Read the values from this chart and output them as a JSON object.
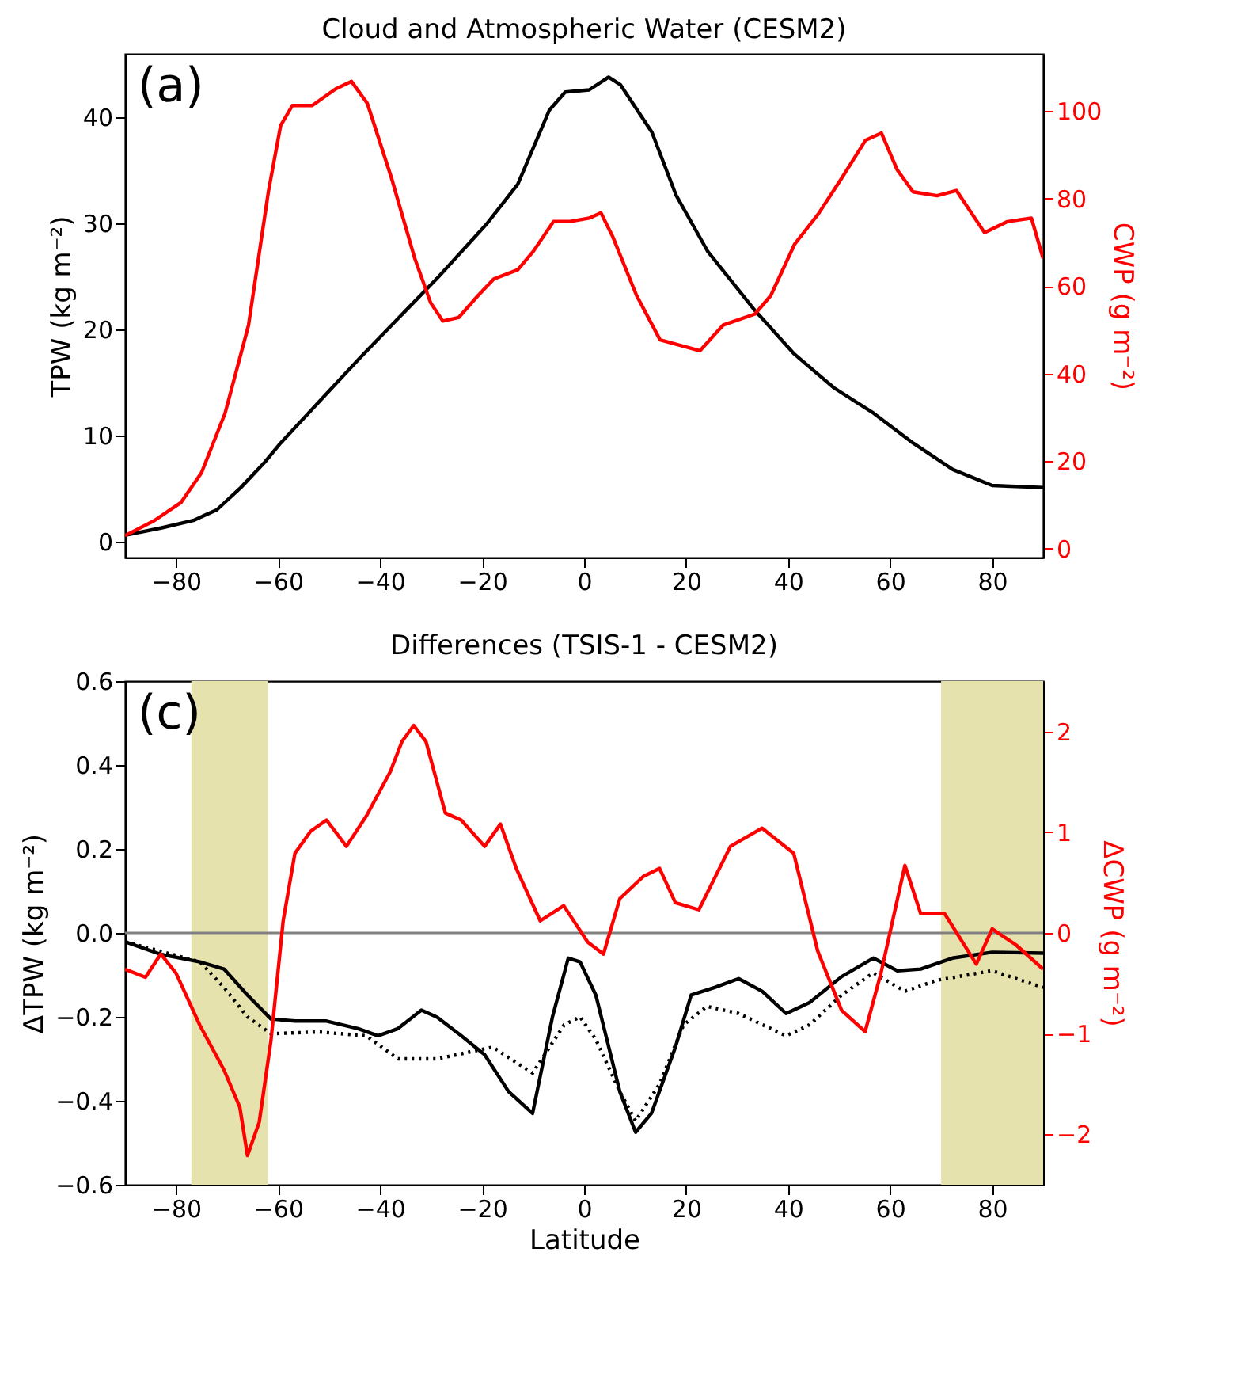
{
  "chart_data": [
    {
      "type": "line",
      "title": "Cloud and Atmospheric Water (CESM2)",
      "ylabel": "TPW (kg m⁻²)",
      "y2label": "CWP (g m⁻²)",
      "annotations": [
        "(a)"
      ],
      "xlim": [
        -90,
        90
      ],
      "xticks": [
        {
          "value": -80,
          "label": "−80"
        },
        {
          "value": -60,
          "label": "−60"
        },
        {
          "value": -40,
          "label": "−40"
        },
        {
          "value": -20,
          "label": "−20"
        },
        0,
        20,
        40,
        60,
        80
      ],
      "ylim": [
        -1.5,
        46
      ],
      "yticks": [
        0,
        10,
        20,
        30,
        40
      ],
      "y2lim": [
        -2,
        113
      ],
      "y2ticks": [
        0,
        20,
        40,
        60,
        80,
        100
      ],
      "grid": false,
      "series": [
        {
          "color": "#000000",
          "x": [
            -90,
            -82.8,
            -76.6,
            -72,
            -67.3,
            -62.6,
            -59.5,
            -44,
            -28.5,
            -19.2,
            -13,
            -6.8,
            -3.7,
            1,
            4.8,
            7.1,
            13.3,
            18,
            24.2,
            33.5,
            41.2,
            49,
            56.8,
            64.5,
            72.3,
            80,
            84.7,
            90
          ],
          "values": [
            0.6,
            1.3,
            2.0,
            3.0,
            5.1,
            7.5,
            9.3,
            17.3,
            25.0,
            29.9,
            33.7,
            40.7,
            42.4,
            42.6,
            43.8,
            43.1,
            38.6,
            32.7,
            27.4,
            21.8,
            17.7,
            14.5,
            12.1,
            9.3,
            6.8,
            5.3,
            5.2,
            5.1
          ]
        },
        {
          "color": "#ff0000",
          "axis": "y2",
          "x": [
            -90,
            -84.3,
            -79,
            -75,
            -70.4,
            -65.8,
            -61.9,
            -59.5,
            -57.2,
            -53.3,
            -48.7,
            -45.6,
            -42.5,
            -37.8,
            -33.2,
            -30.1,
            -27.7,
            -24.6,
            -20.8,
            -17.7,
            -13,
            -9.9,
            -6,
            -2.9,
            1,
            3.3,
            5.6,
            10.3,
            14.9,
            22.7,
            27.3,
            33.5,
            36.6,
            41.3,
            45.9,
            50.6,
            55.2,
            58.3,
            61.4,
            64.5,
            69.2,
            73,
            78.5,
            83,
            87.7,
            90
          ],
          "values": [
            3.0,
            6.4,
            10.6,
            17.4,
            30.9,
            51,
            81.5,
            96.6,
            101.2,
            101.2,
            105,
            106.7,
            101.7,
            84.8,
            66.3,
            56.2,
            52,
            52.8,
            57.8,
            61.6,
            63.7,
            68,
            74.7,
            74.7,
            75.5,
            76.7,
            71.3,
            57.8,
            47.7,
            45.2,
            51.1,
            53.6,
            57.8,
            69.6,
            76.4,
            84.8,
            93.3,
            94.9,
            86.5,
            81.5,
            80.6,
            81.8,
            72.2,
            74.7,
            75.5,
            66.3
          ]
        }
      ]
    },
    {
      "type": "line",
      "title": "Differences (TSIS-1 - CESM2)",
      "xlabel": "Latitude",
      "ylabel": "ΔTPW (kg m⁻²)",
      "y2label": "ΔCWP (g m⁻²)",
      "annotations": [
        "(c)"
      ],
      "xlim": [
        -90,
        90
      ],
      "xticks": [
        {
          "value": -80,
          "label": "−80"
        },
        {
          "value": -60,
          "label": "−60"
        },
        {
          "value": -40,
          "label": "−40"
        },
        {
          "value": -20,
          "label": "−20"
        },
        0,
        20,
        40,
        60,
        80
      ],
      "ylim": [
        -0.6,
        0.6
      ],
      "yticks": [
        {
          "value": -0.6,
          "label": "−0.6"
        },
        {
          "value": -0.4,
          "label": "−0.4"
        },
        {
          "value": -0.2,
          "label": "−0.2"
        },
        {
          "value": 0,
          "label": "0.0"
        },
        0.2,
        0.4,
        0.6
      ],
      "y2lim": [
        -2.5,
        2.5
      ],
      "y2ticks": [
        {
          "value": -2,
          "label": "−2"
        },
        {
          "value": -1,
          "label": "−1"
        },
        0,
        1,
        2
      ],
      "grid": false,
      "ref_lines": [
        {
          "axis": "y",
          "value": 0,
          "color": "#808080"
        }
      ],
      "bands": [
        {
          "axis": "x",
          "from": -77,
          "to": -62,
          "color": "#e6e2ae"
        },
        {
          "axis": "x",
          "from": 70,
          "to": 90,
          "color": "#e6e2ae"
        }
      ],
      "series": [
        {
          "color": "#000000",
          "x": [
            -90,
            -83,
            -75.3,
            -70.6,
            -66,
            -61.4,
            -56.7,
            -50.5,
            -44.3,
            -40.4,
            -36.5,
            -31.9,
            -28.8,
            -24.1,
            -19.5,
            -14.8,
            -10.1,
            -6.2,
            -3.1,
            -0.8,
            2.3,
            7,
            10.1,
            13.2,
            17.9,
            21,
            25.6,
            30.3,
            34.9,
            39.6,
            44.2,
            50.5,
            56.7,
            61.4,
            66,
            72.2,
            80,
            90
          ],
          "values": [
            -0.021,
            -0.051,
            -0.069,
            -0.086,
            -0.148,
            -0.205,
            -0.21,
            -0.21,
            -0.228,
            -0.245,
            -0.228,
            -0.184,
            -0.201,
            -0.245,
            -0.29,
            -0.378,
            -0.43,
            -0.2,
            -0.06,
            -0.069,
            -0.148,
            -0.378,
            -0.475,
            -0.43,
            -0.272,
            -0.148,
            -0.13,
            -0.109,
            -0.139,
            -0.192,
            -0.166,
            -0.104,
            -0.06,
            -0.09,
            -0.086,
            -0.06,
            -0.046,
            -0.048
          ]
        },
        {
          "color": "#000000",
          "line_style": "dotted",
          "x": [
            -90,
            -75.3,
            -70.6,
            -66,
            -61.4,
            -52,
            -42.7,
            -36.5,
            -28.8,
            -17.9,
            -10.1,
            -3.9,
            -0.8,
            2.3,
            7,
            10.1,
            14.8,
            19.5,
            24.1,
            30.3,
            39.6,
            44.2,
            50.5,
            56.7,
            62.9,
            69.1,
            80,
            90
          ],
          "values": [
            -0.021,
            -0.069,
            -0.13,
            -0.2,
            -0.24,
            -0.236,
            -0.245,
            -0.3,
            -0.3,
            -0.272,
            -0.334,
            -0.219,
            -0.2,
            -0.254,
            -0.378,
            -0.448,
            -0.36,
            -0.219,
            -0.175,
            -0.192,
            -0.245,
            -0.219,
            -0.148,
            -0.095,
            -0.139,
            -0.113,
            -0.09,
            -0.13
          ]
        },
        {
          "color": "#ff0000",
          "axis": "y2",
          "x": [
            -90,
            -86,
            -83,
            -80,
            -75.3,
            -70.6,
            -67.5,
            -66,
            -63.7,
            -61.4,
            -59,
            -56.7,
            -53.6,
            -50.5,
            -46.6,
            -42.7,
            -38,
            -35.7,
            -33.4,
            -31,
            -27.2,
            -24.1,
            -19.5,
            -16.4,
            -13.3,
            -8.6,
            -4,
            0.7,
            3.8,
            7,
            11.6,
            14.8,
            17.9,
            22.5,
            28.7,
            34.9,
            41.1,
            45.8,
            50.5,
            55.1,
            58.2,
            62.9,
            66,
            70.7,
            76.9,
            80,
            84.7,
            90
          ],
          "values": [
            -0.36,
            -0.44,
            -0.21,
            -0.4,
            -0.92,
            -1.36,
            -1.73,
            -2.21,
            -1.88,
            -1.07,
            0.12,
            0.79,
            1.01,
            1.12,
            0.86,
            1.16,
            1.6,
            1.9,
            2.06,
            1.9,
            1.19,
            1.12,
            0.86,
            1.08,
            0.64,
            0.12,
            0.27,
            -0.09,
            -0.21,
            0.34,
            0.56,
            0.64,
            0.3,
            0.23,
            0.86,
            1.04,
            0.79,
            -0.18,
            -0.77,
            -0.98,
            -0.4,
            0.67,
            0.19,
            0.19,
            -0.31,
            0.04,
            -0.12,
            -0.36
          ]
        }
      ]
    }
  ]
}
